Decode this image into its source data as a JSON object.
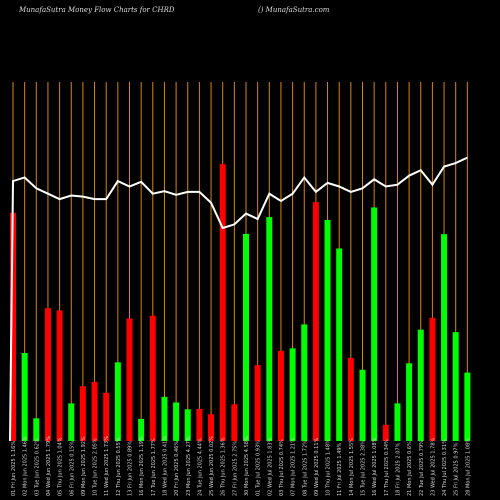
{
  "header": {
    "title_left": "MunafaSutra  Money Flow  Charts for CHRD",
    "title_right": "() MunafaSutra.com"
  },
  "chart_data": {
    "type": "bar",
    "bar_scale": [
      0,
      100
    ],
    "line_scale": [
      0,
      100
    ],
    "colors": {
      "up": "#00ff00",
      "down": "#ff0000",
      "line": "#ffffff",
      "grid": "#d9860f",
      "background": "#000000"
    },
    "categories": [
      "01 Fri Jun 2025 1.16%",
      "02 Mon Jun 2025 1.46%",
      "03 Tue Jun 2025 0.62%",
      "04 Wed Jun 2025 1.79%",
      "05 Thu Jun 2025 1.04%",
      "06 Fri Jun 2025 0.15%",
      "09 Mon Jun 2025 1.92%",
      "10 Tue Jun 2025 2.05%",
      "11 Wed Jun 2025 1.73%",
      "12 Thu Jun 2025 0.55%",
      "13 Fri Jun 2025 0.89%",
      "16 Mon Jun 2025 1.19%",
      "17 Tue Jun 2025 1.77%",
      "18 Wed Jun 2025 0.41%",
      "20 Fri Jun 2025 0.46%",
      "23 Mon Jun 2025 4.27%",
      "24 Tue Jun 2025 4.44%",
      "25 Wed Jun 2025 0.02%",
      "26 Thu Jun 2025 1.36%",
      "27 Fri Jun 2025 2.75%",
      "30 Mon Jun 2025 4.58%",
      "01 Tue Jul 2025 0.93%",
      "02 Wed Jul 2025 1.83%",
      "03 Thu Jul 2025 0.74%",
      "07 Mon Jul 2025 1.21%",
      "08 Tue Jul 2025 1.72%",
      "09 Wed Jul 2025 0.11%",
      "10 Thu Jul 2025 1.48%",
      "11 Fri Jul 2025 1.49%",
      "14 Mon Jul 2025 1.55%",
      "15 Tue Jul 2025 2.38%",
      "16 Wed Jul 2025 1.08%",
      "17 Thu Jul 2025 0.34%",
      "18 Fri Jul 2025 2.07%",
      "21 Mon Jul 2025 0.6%",
      "22 Tue Jul 2025 0.79%",
      "23 Wed Jul 2025 1.78%",
      "24 Thu Jul 2025 0.31%",
      "25 Fri Jul 2025 0.97%",
      "28 Mon Jul 2025 1.08%"
    ],
    "series": [
      {
        "type": "bar",
        "values": [
          73.4,
          28.3,
          7.3,
          42.7,
          42.0,
          12.1,
          17.6,
          19.0,
          15.5,
          25.3,
          39.4,
          7.1,
          40.3,
          14.2,
          12.4,
          10.2,
          10.3,
          8.6,
          89.0,
          11.8,
          66.6,
          24.4,
          72.0,
          29.0,
          29.8,
          37.5,
          76.8,
          71.1,
          61.9,
          26.7,
          22.9,
          75.1,
          5.2,
          12.1,
          25.0,
          35.8,
          39.6,
          66.5,
          35.0,
          22.0
        ],
        "direction": [
          "down",
          "up",
          "up",
          "down",
          "down",
          "up",
          "down",
          "down",
          "down",
          "up",
          "down",
          "up",
          "down",
          "up",
          "up",
          "up",
          "down",
          "down",
          "down",
          "down",
          "up",
          "down",
          "up",
          "down",
          "up",
          "up",
          "down",
          "up",
          "up",
          "down",
          "up",
          "up",
          "down",
          "up",
          "up",
          "up",
          "down",
          "up",
          "up",
          "up"
        ]
      },
      {
        "type": "line",
        "values": [
          72,
          73,
          70,
          68.5,
          67,
          68,
          67.7,
          67,
          67,
          72,
          70.5,
          71.8,
          68.5,
          69.2,
          68.2,
          69,
          69,
          66,
          59,
          60,
          63,
          61.5,
          68.5,
          66.5,
          68.5,
          73,
          69,
          71.5,
          70.5,
          69,
          70,
          72.5,
          70.5,
          71,
          73.5,
          75,
          71,
          76,
          77,
          78.5
        ]
      }
    ]
  }
}
